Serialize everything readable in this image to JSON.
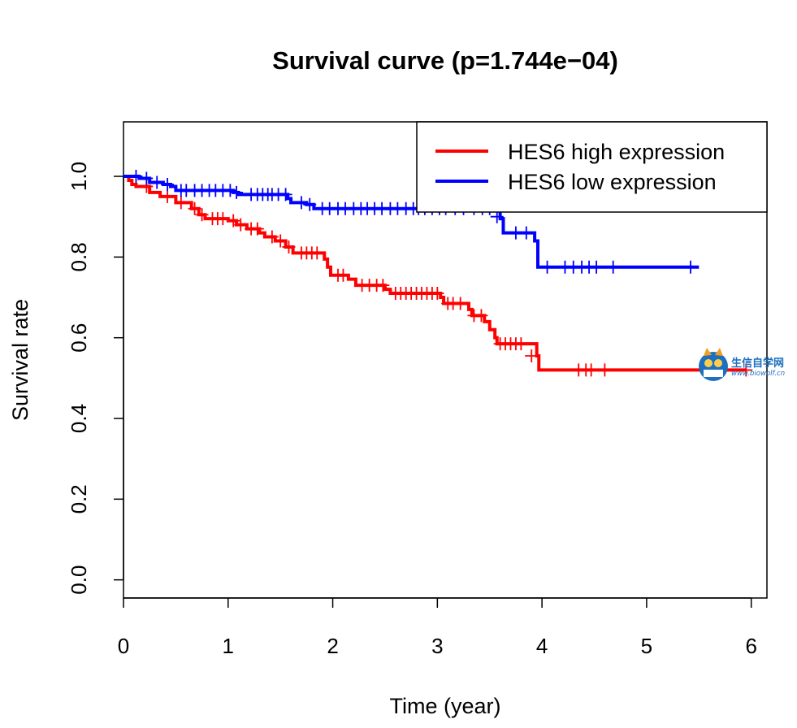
{
  "chart_data": {
    "type": "line",
    "step": "post",
    "title": "Survival curve (p=1.744e−04)",
    "xlabel": "Time (year)",
    "ylabel": "Survival rate",
    "xlim": [
      0,
      6.15
    ],
    "ylim": [
      -0.045,
      1.135
    ],
    "xticks": [
      0,
      1,
      2,
      3,
      4,
      5,
      6
    ],
    "yticks": [
      0.0,
      0.2,
      0.4,
      0.6,
      0.8,
      1.0
    ],
    "xtick_labels": [
      "0",
      "1",
      "2",
      "3",
      "4",
      "5",
      "6"
    ],
    "ytick_labels": [
      "0.0",
      "0.2",
      "0.4",
      "0.6",
      "0.8",
      "1.0"
    ],
    "legend": {
      "position": "top-right"
    },
    "series": [
      {
        "name": "HES6 high expression",
        "color": "#ff0000",
        "steps": [
          [
            0,
            1.0
          ],
          [
            0.05,
            0.99
          ],
          [
            0.08,
            0.98
          ],
          [
            0.12,
            0.975
          ],
          [
            0.25,
            0.96
          ],
          [
            0.35,
            0.95
          ],
          [
            0.5,
            0.935
          ],
          [
            0.65,
            0.92
          ],
          [
            0.72,
            0.905
          ],
          [
            0.78,
            0.895
          ],
          [
            1.0,
            0.89
          ],
          [
            1.08,
            0.88
          ],
          [
            1.18,
            0.87
          ],
          [
            1.3,
            0.86
          ],
          [
            1.35,
            0.85
          ],
          [
            1.45,
            0.84
          ],
          [
            1.55,
            0.825
          ],
          [
            1.62,
            0.81
          ],
          [
            1.92,
            0.795
          ],
          [
            1.95,
            0.775
          ],
          [
            1.98,
            0.755
          ],
          [
            2.15,
            0.745
          ],
          [
            2.22,
            0.73
          ],
          [
            2.5,
            0.72
          ],
          [
            2.55,
            0.71
          ],
          [
            3.03,
            0.7
          ],
          [
            3.06,
            0.685
          ],
          [
            3.3,
            0.67
          ],
          [
            3.33,
            0.655
          ],
          [
            3.45,
            0.64
          ],
          [
            3.5,
            0.62
          ],
          [
            3.55,
            0.6
          ],
          [
            3.57,
            0.585
          ],
          [
            3.95,
            0.555
          ],
          [
            3.97,
            0.52
          ],
          [
            5.95,
            0.52
          ]
        ],
        "censored": [
          [
            0.22,
            0.975
          ],
          [
            0.42,
            0.95
          ],
          [
            0.55,
            0.935
          ],
          [
            0.68,
            0.92
          ],
          [
            0.75,
            0.905
          ],
          [
            0.85,
            0.895
          ],
          [
            0.9,
            0.895
          ],
          [
            0.95,
            0.895
          ],
          [
            1.05,
            0.89
          ],
          [
            1.12,
            0.88
          ],
          [
            1.22,
            0.87
          ],
          [
            1.28,
            0.87
          ],
          [
            1.42,
            0.85
          ],
          [
            1.5,
            0.84
          ],
          [
            1.58,
            0.825
          ],
          [
            1.7,
            0.81
          ],
          [
            1.75,
            0.81
          ],
          [
            1.8,
            0.81
          ],
          [
            1.85,
            0.81
          ],
          [
            2.05,
            0.755
          ],
          [
            2.1,
            0.755
          ],
          [
            2.28,
            0.73
          ],
          [
            2.35,
            0.73
          ],
          [
            2.42,
            0.73
          ],
          [
            2.48,
            0.73
          ],
          [
            2.6,
            0.71
          ],
          [
            2.65,
            0.71
          ],
          [
            2.7,
            0.71
          ],
          [
            2.75,
            0.71
          ],
          [
            2.8,
            0.71
          ],
          [
            2.85,
            0.71
          ],
          [
            2.9,
            0.71
          ],
          [
            2.95,
            0.71
          ],
          [
            3.0,
            0.71
          ],
          [
            3.1,
            0.685
          ],
          [
            3.15,
            0.685
          ],
          [
            3.22,
            0.685
          ],
          [
            3.35,
            0.655
          ],
          [
            3.42,
            0.655
          ],
          [
            3.6,
            0.585
          ],
          [
            3.65,
            0.585
          ],
          [
            3.7,
            0.585
          ],
          [
            3.75,
            0.585
          ],
          [
            3.8,
            0.585
          ],
          [
            3.9,
            0.555
          ],
          [
            4.35,
            0.52
          ],
          [
            4.42,
            0.52
          ],
          [
            4.47,
            0.52
          ],
          [
            4.6,
            0.52
          ],
          [
            5.95,
            0.52
          ]
        ]
      },
      {
        "name": "HES6 low expression",
        "color": "#0000ff",
        "steps": [
          [
            0,
            1.0
          ],
          [
            0.15,
            0.995
          ],
          [
            0.25,
            0.985
          ],
          [
            0.38,
            0.98
          ],
          [
            0.45,
            0.975
          ],
          [
            0.5,
            0.965
          ],
          [
            1.05,
            0.96
          ],
          [
            1.1,
            0.955
          ],
          [
            1.57,
            0.945
          ],
          [
            1.6,
            0.935
          ],
          [
            1.75,
            0.93
          ],
          [
            1.82,
            0.92
          ],
          [
            3.6,
            0.895
          ],
          [
            3.63,
            0.86
          ],
          [
            3.93,
            0.84
          ],
          [
            3.96,
            0.775
          ],
          [
            5.5,
            0.775
          ]
        ],
        "censored": [
          [
            0.12,
            1.0
          ],
          [
            0.22,
            0.995
          ],
          [
            0.32,
            0.985
          ],
          [
            0.42,
            0.98
          ],
          [
            0.55,
            0.965
          ],
          [
            0.6,
            0.965
          ],
          [
            0.68,
            0.965
          ],
          [
            0.75,
            0.965
          ],
          [
            0.82,
            0.965
          ],
          [
            0.88,
            0.965
          ],
          [
            0.95,
            0.965
          ],
          [
            1.02,
            0.965
          ],
          [
            1.08,
            0.96
          ],
          [
            1.22,
            0.955
          ],
          [
            1.28,
            0.955
          ],
          [
            1.33,
            0.955
          ],
          [
            1.38,
            0.955
          ],
          [
            1.42,
            0.955
          ],
          [
            1.48,
            0.955
          ],
          [
            1.55,
            0.955
          ],
          [
            1.7,
            0.935
          ],
          [
            1.78,
            0.93
          ],
          [
            1.9,
            0.92
          ],
          [
            1.97,
            0.92
          ],
          [
            2.05,
            0.92
          ],
          [
            2.12,
            0.92
          ],
          [
            2.2,
            0.92
          ],
          [
            2.27,
            0.92
          ],
          [
            2.33,
            0.92
          ],
          [
            2.4,
            0.92
          ],
          [
            2.47,
            0.92
          ],
          [
            2.55,
            0.92
          ],
          [
            2.62,
            0.92
          ],
          [
            2.7,
            0.92
          ],
          [
            2.77,
            0.92
          ],
          [
            2.82,
            0.92
          ],
          [
            2.88,
            0.92
          ],
          [
            2.95,
            0.92
          ],
          [
            3.02,
            0.92
          ],
          [
            3.08,
            0.92
          ],
          [
            3.17,
            0.92
          ],
          [
            3.25,
            0.92
          ],
          [
            3.35,
            0.92
          ],
          [
            3.43,
            0.92
          ],
          [
            3.5,
            0.92
          ],
          [
            3.57,
            0.9
          ],
          [
            3.75,
            0.86
          ],
          [
            3.85,
            0.86
          ],
          [
            4.05,
            0.775
          ],
          [
            4.22,
            0.775
          ],
          [
            4.3,
            0.775
          ],
          [
            4.38,
            0.775
          ],
          [
            4.45,
            0.775
          ],
          [
            4.52,
            0.775
          ],
          [
            4.68,
            0.775
          ],
          [
            5.42,
            0.775
          ]
        ]
      }
    ]
  },
  "watermark": {
    "title": "生信自学网",
    "url": "www.biowolf.cn"
  }
}
